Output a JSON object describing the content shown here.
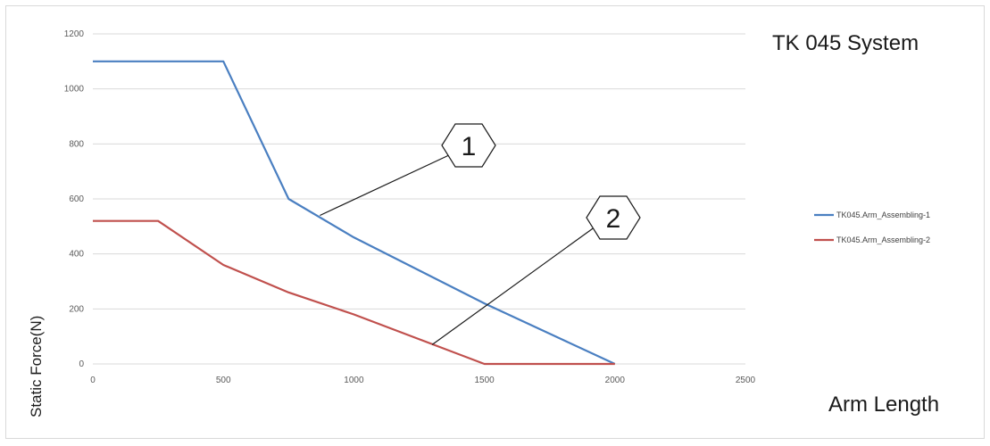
{
  "chart_data": {
    "type": "line",
    "title": "TK 045 System",
    "xlabel": "Arm Length",
    "ylabel": "Static Force(N)",
    "xlim": [
      0,
      2500
    ],
    "ylim": [
      0,
      1200
    ],
    "x_ticks": [
      "0",
      "500",
      "1000",
      "1500",
      "2000",
      "2500"
    ],
    "y_ticks": [
      "0",
      "200",
      "400",
      "600",
      "800",
      "1000",
      "1200"
    ],
    "grid": "horizontal",
    "legend_position": "right",
    "series": [
      {
        "name": "TK045.Arm_Assembling-1",
        "color": "#4a7fc1",
        "x": [
          0,
          500,
          750,
          1000,
          1500,
          2000
        ],
        "y": [
          1100,
          1100,
          600,
          460,
          220,
          0
        ]
      },
      {
        "name": "TK045.Arm_Assembling-2",
        "color": "#c0504d",
        "x": [
          0,
          250,
          500,
          750,
          1000,
          1250,
          1500,
          2000
        ],
        "y": [
          520,
          520,
          360,
          260,
          180,
          90,
          0,
          0
        ]
      }
    ],
    "annotations": [
      {
        "label": "1",
        "points_to_series": 0,
        "target": [
          870,
          540
        ]
      },
      {
        "label": "2",
        "points_to_series": 1,
        "target": [
          1300,
          70
        ]
      }
    ]
  }
}
